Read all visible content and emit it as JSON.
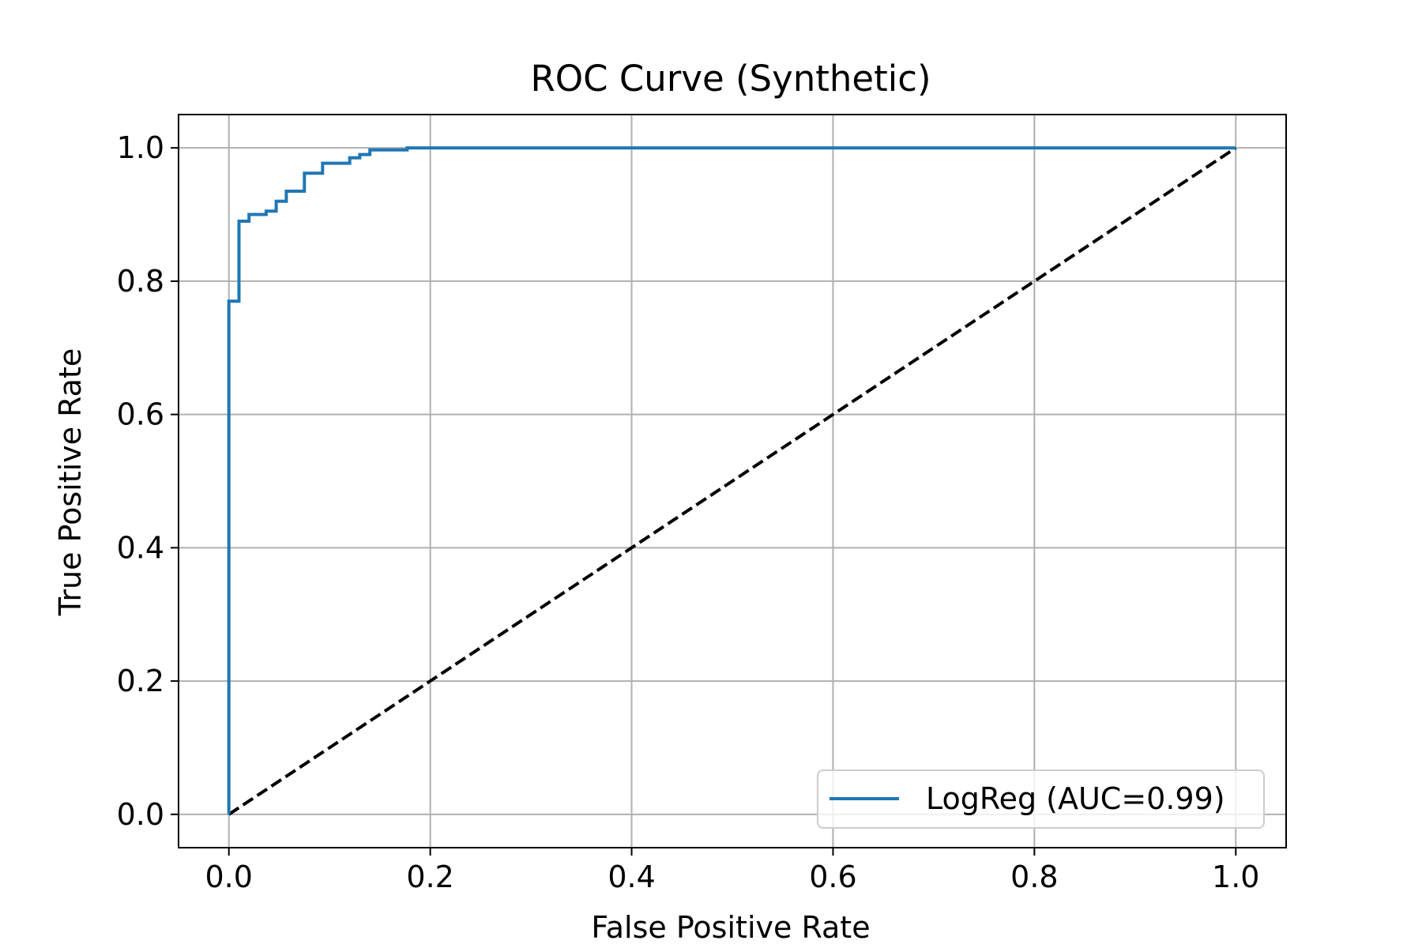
{
  "chart_data": {
    "type": "line",
    "title": "ROC Curve (Synthetic)",
    "xlabel": "False Positive Rate",
    "ylabel": "True Positive Rate",
    "xlim": [
      -0.05,
      1.05
    ],
    "ylim": [
      -0.05,
      1.05
    ],
    "xticks": [
      0.0,
      0.2,
      0.4,
      0.6,
      0.8,
      1.0
    ],
    "yticks": [
      0.0,
      0.2,
      0.4,
      0.6,
      0.8,
      1.0
    ],
    "xtick_labels": [
      "0.0",
      "0.2",
      "0.4",
      "0.6",
      "0.8",
      "1.0"
    ],
    "ytick_labels": [
      "0.0",
      "0.2",
      "0.4",
      "0.6",
      "0.8",
      "1.0"
    ],
    "grid": true,
    "legend_position": "lower-right",
    "series": [
      {
        "name": "LogReg (AUC=0.99)",
        "color": "#1f77b4",
        "style": "solid",
        "x": [
          0.0,
          0.0,
          0.01,
          0.01,
          0.02,
          0.02,
          0.037,
          0.037,
          0.047,
          0.047,
          0.057,
          0.057,
          0.075,
          0.075,
          0.093,
          0.093,
          0.12,
          0.12,
          0.13,
          0.13,
          0.14,
          0.14,
          0.177,
          0.177,
          1.0
        ],
        "y": [
          0.0,
          0.77,
          0.77,
          0.89,
          0.89,
          0.9,
          0.9,
          0.905,
          0.905,
          0.92,
          0.92,
          0.935,
          0.935,
          0.962,
          0.962,
          0.977,
          0.977,
          0.985,
          0.985,
          0.99,
          0.99,
          0.997,
          0.997,
          1.0,
          1.0
        ]
      },
      {
        "color": "#000000",
        "style": "dashed",
        "x": [
          0.0,
          1.0
        ],
        "y": [
          0.0,
          1.0
        ]
      }
    ]
  }
}
